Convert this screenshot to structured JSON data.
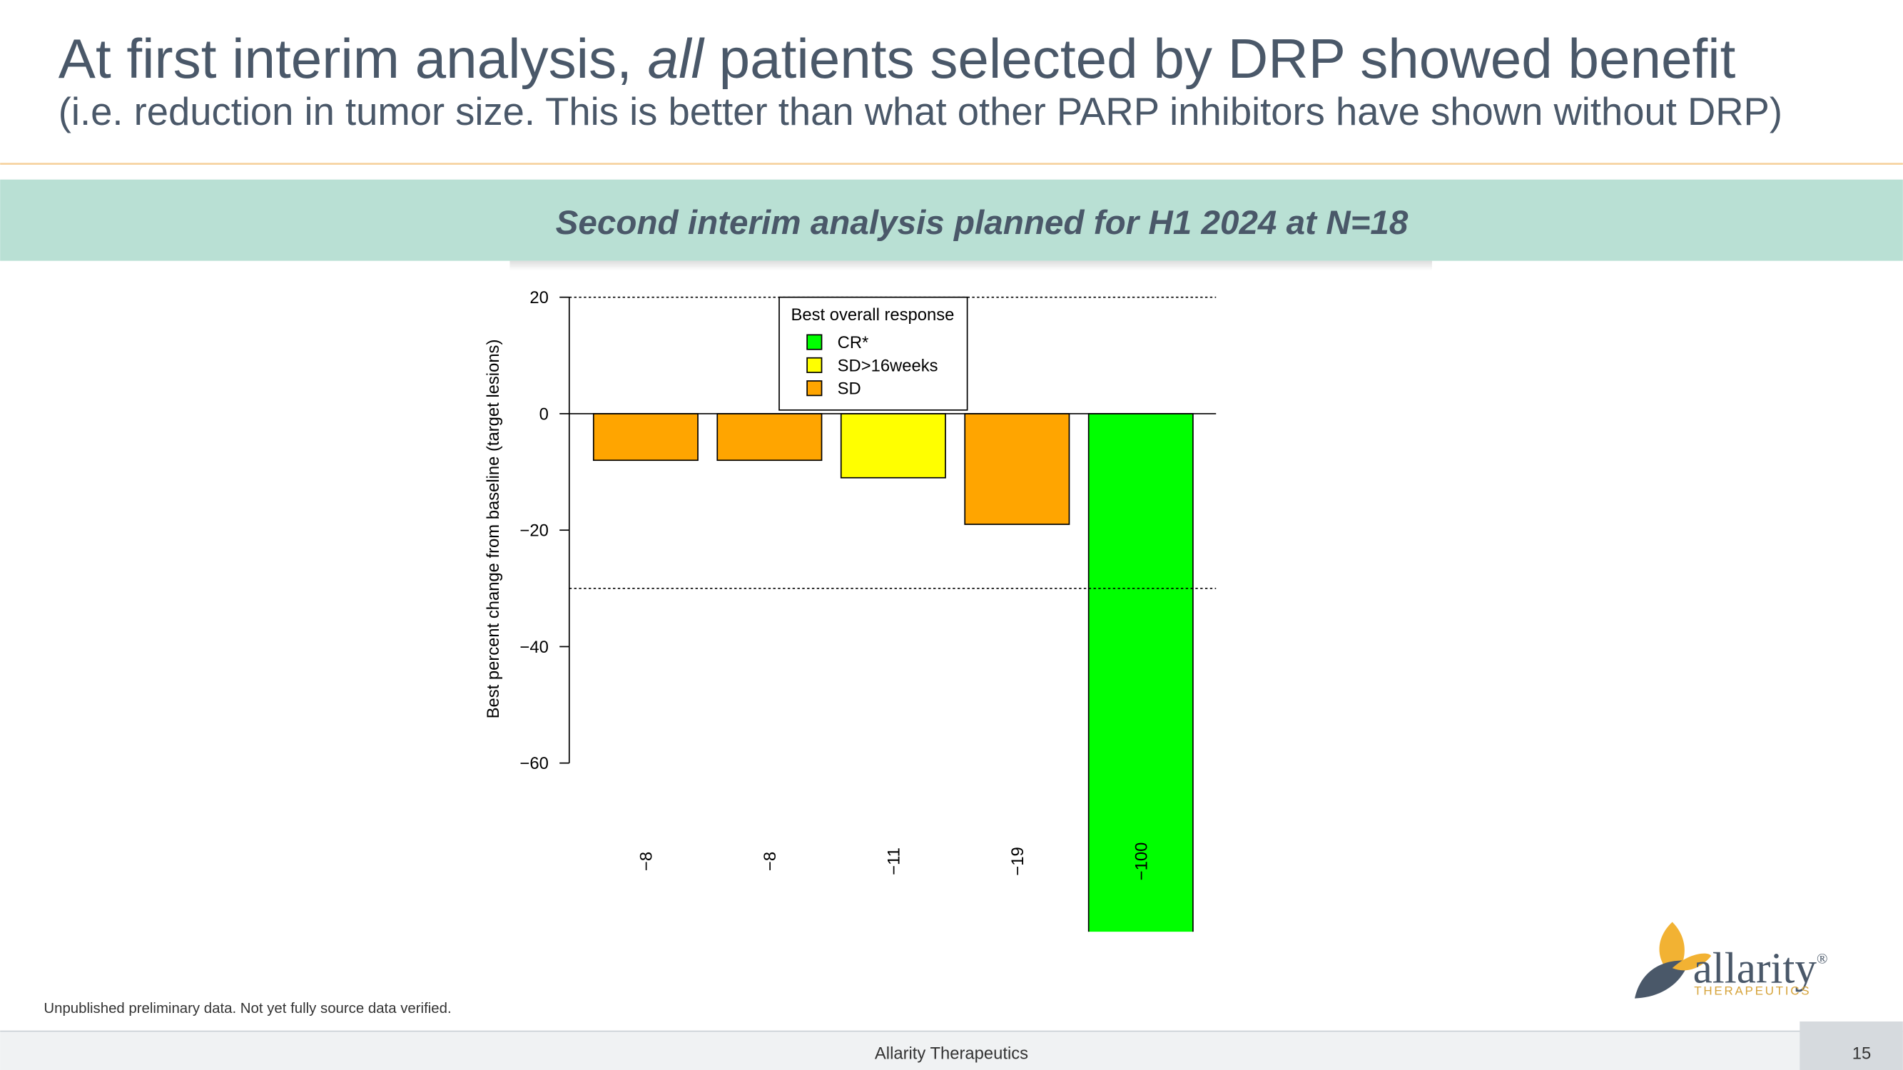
{
  "header": {
    "title_parts": [
      "At first interim analysis, ",
      "all",
      " patients selected by DRP showed benefit"
    ],
    "subtitle": "(i.e. reduction in tumor size. This is better than what other PARP inhibitors have shown without DRP)"
  },
  "banner": "Second interim analysis planned for H1 2024 at N=18",
  "chart_data": {
    "type": "bar",
    "ylabel": "Best percent change from baseline (target lesions)",
    "values": [
      -8,
      -8,
      -11,
      -19,
      -100
    ],
    "value_labels": [
      "−8",
      "−8",
      "−11",
      "−19",
      "−100"
    ],
    "colors": [
      "#ffa500",
      "#ffa500",
      "#ffff00",
      "#ffa500",
      "#00ff00"
    ],
    "ylim": [
      -89,
      20
    ],
    "yticks": [
      20,
      0,
      {
        "value": -20,
        "label": "−20"
      },
      {
        "value": -40,
        "label": "−40"
      },
      {
        "value": -60,
        "label": "−60"
      }
    ],
    "reference_lines": [
      20,
      -30
    ],
    "legend": {
      "title": "Best overall response",
      "items": [
        {
          "name": "CR*",
          "color": "#00ff00"
        },
        {
          "name": "SD>16weeks",
          "color": "#ffff00"
        },
        {
          "name": "SD",
          "color": "#ffa500"
        }
      ]
    }
  },
  "footnote": "Unpublished preliminary data. Not yet fully source data verified.",
  "logo": {
    "name": "allarity",
    "mark": "®",
    "tagline": "THERAPEUTICS"
  },
  "footer": {
    "company": "Allarity Therapeutics",
    "page": "15"
  }
}
